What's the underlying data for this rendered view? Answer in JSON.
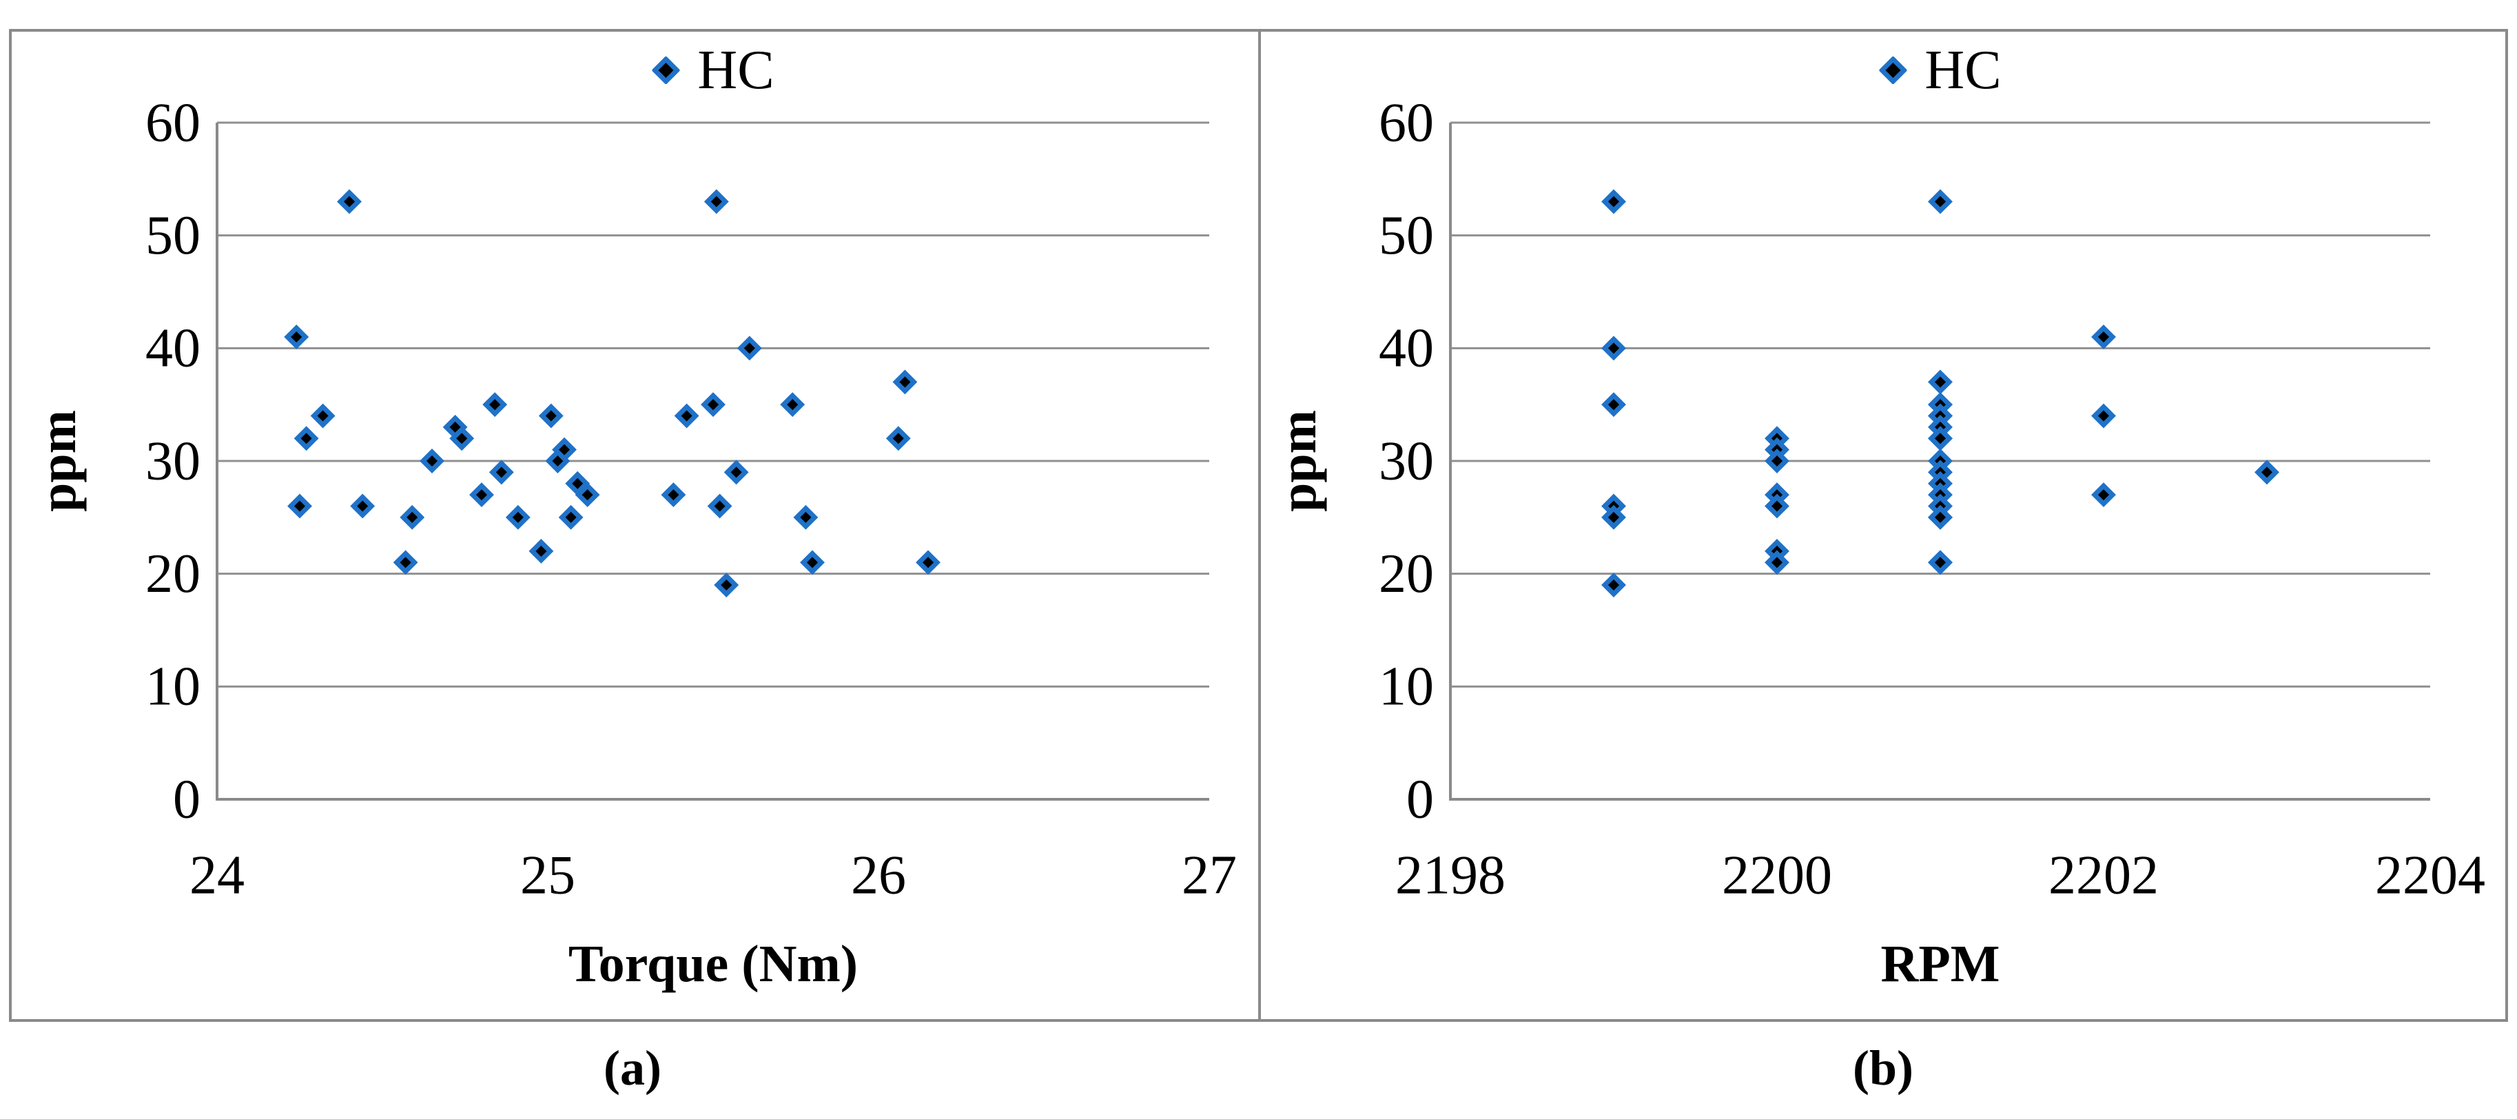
{
  "figure": {
    "background": "#ffffff",
    "border_color": "#8a8a8a"
  },
  "colors": {
    "marker_fill": "#000000",
    "marker_stroke": "#1f72c8",
    "grid": "#909090",
    "axis": "#8a8a8a",
    "text": "#000000"
  },
  "chart_data": [
    {
      "type": "scatter",
      "panel": "a",
      "caption": "(a)",
      "legend_label": "HC",
      "legend_position": "top-center",
      "xlabel": "Torque (Nm)",
      "ylabel": "ppm",
      "xlim": [
        24,
        27
      ],
      "ylim": [
        0,
        60
      ],
      "xticks": [
        24,
        25,
        26,
        27
      ],
      "yticks": [
        0,
        10,
        20,
        30,
        40,
        50,
        60
      ],
      "grid": "horizontal",
      "series": [
        {
          "name": "HC",
          "points": [
            [
              24.24,
              41
            ],
            [
              24.25,
              26
            ],
            [
              24.27,
              32
            ],
            [
              24.32,
              34
            ],
            [
              24.4,
              53
            ],
            [
              24.44,
              26
            ],
            [
              24.57,
              21
            ],
            [
              24.59,
              25
            ],
            [
              24.65,
              30
            ],
            [
              24.72,
              33
            ],
            [
              24.74,
              32
            ],
            [
              24.8,
              27
            ],
            [
              24.84,
              35
            ],
            [
              24.86,
              29
            ],
            [
              24.91,
              25
            ],
            [
              24.98,
              22
            ],
            [
              25.01,
              34
            ],
            [
              25.03,
              30
            ],
            [
              25.05,
              31
            ],
            [
              25.07,
              25
            ],
            [
              25.09,
              28
            ],
            [
              25.12,
              27
            ],
            [
              25.38,
              27
            ],
            [
              25.42,
              34
            ],
            [
              25.5,
              35
            ],
            [
              25.51,
              53
            ],
            [
              25.52,
              26
            ],
            [
              25.54,
              19
            ],
            [
              25.57,
              29
            ],
            [
              25.61,
              40
            ],
            [
              25.74,
              35
            ],
            [
              25.78,
              25
            ],
            [
              25.8,
              21
            ],
            [
              26.06,
              32
            ],
            [
              26.08,
              37
            ],
            [
              26.15,
              21
            ]
          ]
        }
      ]
    },
    {
      "type": "scatter",
      "panel": "b",
      "caption": "(b)",
      "legend_label": "HC",
      "legend_position": "top-center",
      "xlabel": "RPM",
      "ylabel": "ppm",
      "xlim": [
        2198,
        2204
      ],
      "ylim": [
        0,
        60
      ],
      "xticks": [
        2198,
        2200,
        2202,
        2204
      ],
      "yticks": [
        0,
        10,
        20,
        30,
        40,
        50,
        60
      ],
      "grid": "horizontal",
      "series": [
        {
          "name": "HC",
          "points": [
            [
              2199,
              53
            ],
            [
              2199,
              40
            ],
            [
              2199,
              35
            ],
            [
              2199,
              26
            ],
            [
              2199,
              25
            ],
            [
              2199,
              19
            ],
            [
              2200,
              32
            ],
            [
              2200,
              31
            ],
            [
              2200,
              30
            ],
            [
              2200,
              27
            ],
            [
              2200,
              26
            ],
            [
              2200,
              22
            ],
            [
              2200,
              21
            ],
            [
              2201,
              53
            ],
            [
              2201,
              37
            ],
            [
              2201,
              35
            ],
            [
              2201,
              35
            ],
            [
              2201,
              34
            ],
            [
              2201,
              34
            ],
            [
              2201,
              33
            ],
            [
              2201,
              32
            ],
            [
              2201,
              32
            ],
            [
              2201,
              30
            ],
            [
              2201,
              29
            ],
            [
              2201,
              28
            ],
            [
              2201,
              27
            ],
            [
              2201,
              26
            ],
            [
              2201,
              25
            ],
            [
              2201,
              25
            ],
            [
              2201,
              25
            ],
            [
              2201,
              21
            ],
            [
              2201,
              21
            ],
            [
              2202,
              41
            ],
            [
              2202,
              34
            ],
            [
              2202,
              27
            ],
            [
              2203,
              29
            ]
          ]
        }
      ]
    }
  ]
}
